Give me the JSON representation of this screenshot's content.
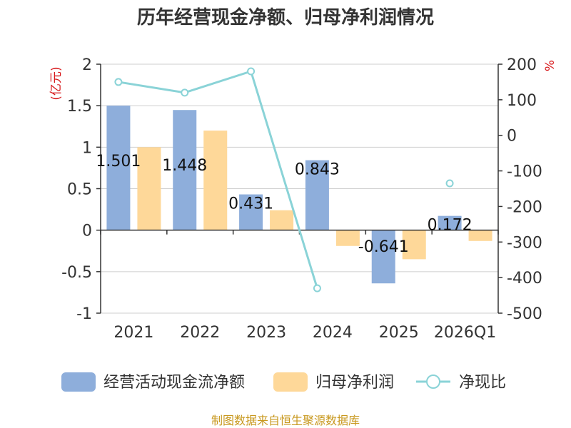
{
  "chart_data": {
    "type": "bar",
    "title": "历年经营现金净额、归母净利润情况",
    "categories": [
      "2021",
      "2022",
      "2023",
      "2024",
      "2025",
      "2026Q1"
    ],
    "left_axis": {
      "unit": "(亿元)",
      "ylim": [
        -1,
        2
      ],
      "ticks": [
        "2",
        "1.5",
        "1",
        "0.5",
        "0",
        "-0.5",
        "-1"
      ],
      "tick_values": [
        2,
        1.5,
        1,
        0.5,
        0,
        -0.5,
        -1
      ]
    },
    "right_axis": {
      "unit": "%",
      "ylim": [
        -500,
        200
      ],
      "ticks": [
        "200",
        "100",
        "0",
        "-100",
        "-200",
        "-300",
        "-400",
        "-500"
      ],
      "tick_values": [
        200,
        100,
        0,
        -100,
        -200,
        -300,
        -400,
        -500
      ]
    },
    "series": [
      {
        "name": "经营活动现金流净额",
        "type": "bar",
        "axis": "left",
        "color": "#8eaedb",
        "values": [
          1.501,
          1.448,
          0.431,
          0.843,
          -0.641,
          0.172
        ],
        "labels": [
          "1.501",
          "1.448",
          "0.431",
          "0.843",
          "-0.641",
          "0.172"
        ]
      },
      {
        "name": "归母净利润",
        "type": "bar",
        "axis": "left",
        "color": "#fed899",
        "values": [
          1.0,
          1.2,
          0.24,
          -0.19,
          -0.35,
          -0.13
        ]
      },
      {
        "name": "净现比",
        "type": "line",
        "axis": "right",
        "color": "#8ad3d7",
        "values": [
          150,
          120,
          180,
          -430,
          null,
          -135
        ]
      }
    ],
    "source": "制图数据来自恒生聚源数据库"
  }
}
